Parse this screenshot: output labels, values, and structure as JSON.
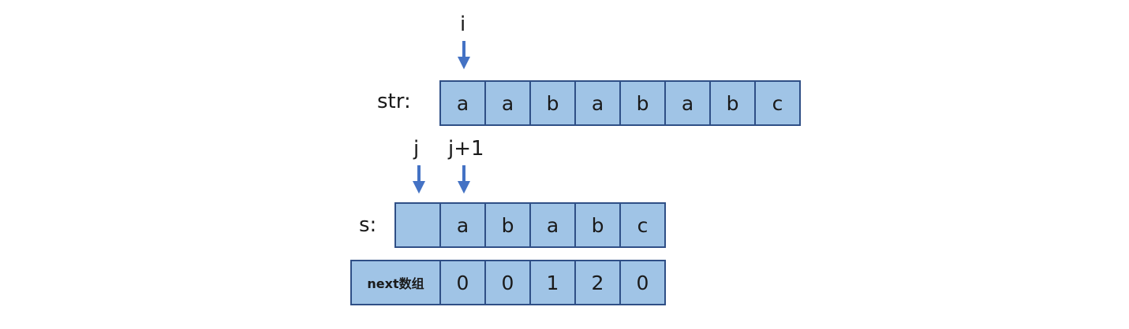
{
  "pointers": {
    "i": "i",
    "j": "j",
    "j_plus_1": "j+1"
  },
  "str_row": {
    "label": "str:",
    "cells": [
      "a",
      "a",
      "b",
      "a",
      "b",
      "a",
      "b",
      "c"
    ]
  },
  "s_row": {
    "label": "s:",
    "cells": [
      "",
      "a",
      "b",
      "a",
      "b",
      "c"
    ]
  },
  "next_row": {
    "label": "next数组",
    "cells": [
      "0",
      "0",
      "1",
      "2",
      "0"
    ]
  },
  "colors": {
    "cell_fill": "#a0c4e6",
    "cell_border": "#2f4f86",
    "arrow": "#4472c4"
  }
}
